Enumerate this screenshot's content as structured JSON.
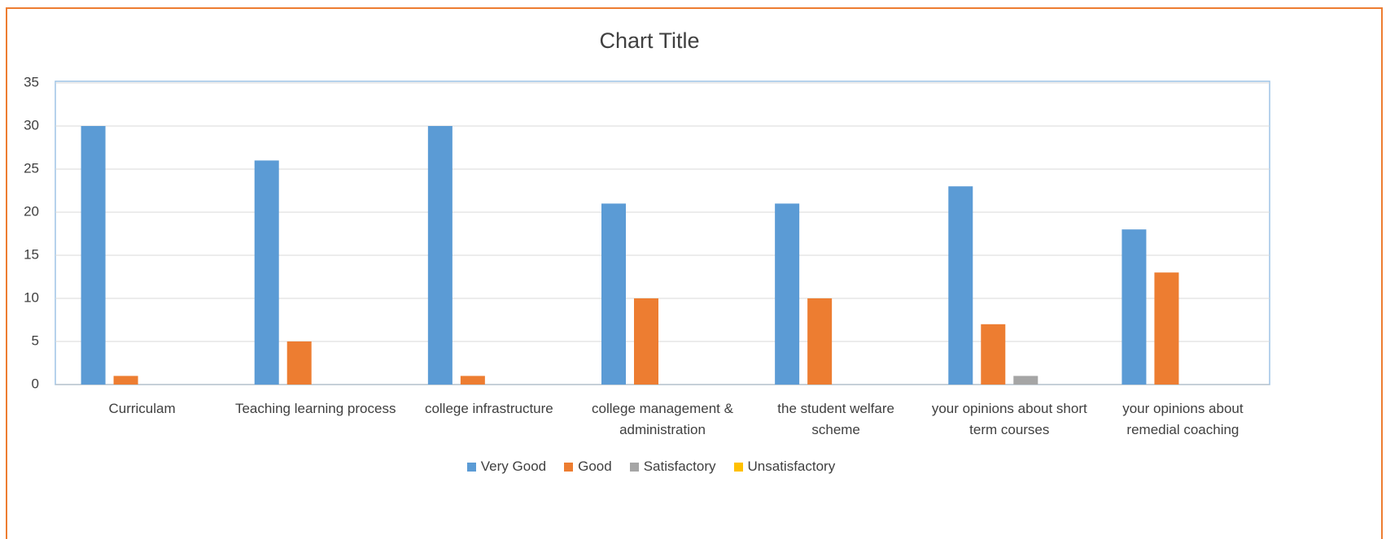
{
  "chart_data": {
    "type": "bar",
    "title": "Chart Title",
    "categories": [
      "Curriculam",
      "Teaching learning process",
      "college infrastructure",
      "college management & administration",
      "the student welfare scheme",
      "your opinions about short term courses",
      "your opinions about remedial coaching"
    ],
    "series": [
      {
        "name": "Very Good",
        "color": "#5b9bd5",
        "values": [
          30,
          26,
          30,
          21,
          21,
          23,
          18
        ]
      },
      {
        "name": "Good",
        "color": "#ed7d31",
        "values": [
          1,
          5,
          1,
          10,
          10,
          7,
          13
        ]
      },
      {
        "name": "Satisfactory",
        "color": "#a5a5a5",
        "values": [
          0,
          0,
          0,
          0,
          0,
          1,
          0
        ]
      },
      {
        "name": "Unsatisfactory",
        "color": "#ffc000",
        "values": [
          0,
          0,
          0,
          0,
          0,
          0,
          0
        ]
      }
    ],
    "ylim": [
      0,
      35
    ],
    "yticks": [
      0,
      5,
      10,
      15,
      20,
      25,
      30,
      35
    ],
    "grid": true,
    "legend": "bottom"
  }
}
